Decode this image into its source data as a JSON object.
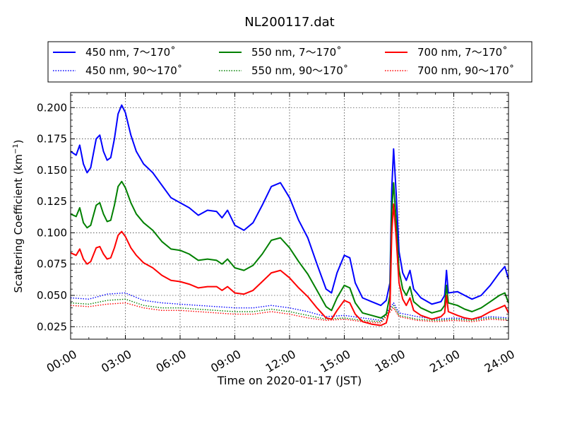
{
  "chart_data": {
    "type": "line",
    "title": "NL200117.dat",
    "xlabel": "Time on 2020-01-17 (JST)",
    "ylabel": "Scattering Coefficient (km",
    "ylabel_sup": "−1",
    "ylabel_close": ")",
    "xlim": [
      0,
      24
    ],
    "ylim": [
      0.015,
      0.212
    ],
    "grid": true,
    "legend_position": "top",
    "x_ticks": [
      0,
      3,
      6,
      9,
      12,
      15,
      18,
      21,
      24
    ],
    "x_tick_labels": [
      "00:00",
      "03:00",
      "06:00",
      "09:00",
      "12:00",
      "15:00",
      "18:00",
      "21:00",
      "24:00"
    ],
    "y_ticks": [
      0.025,
      0.05,
      0.075,
      0.1,
      0.125,
      0.15,
      0.175,
      0.2
    ],
    "y_tick_labels": [
      "0.025",
      "0.050",
      "0.075",
      "0.100",
      "0.125",
      "0.150",
      "0.175",
      "0.200"
    ],
    "series": [
      {
        "name": "450 nm, 7～170˚",
        "color": "#0000ff",
        "style": "solid",
        "points": [
          [
            0,
            0.165
          ],
          [
            0.3,
            0.162
          ],
          [
            0.5,
            0.17
          ],
          [
            0.7,
            0.155
          ],
          [
            0.9,
            0.148
          ],
          [
            1.1,
            0.152
          ],
          [
            1.4,
            0.175
          ],
          [
            1.6,
            0.178
          ],
          [
            1.8,
            0.165
          ],
          [
            2.0,
            0.158
          ],
          [
            2.2,
            0.16
          ],
          [
            2.4,
            0.175
          ],
          [
            2.6,
            0.195
          ],
          [
            2.8,
            0.202
          ],
          [
            3.0,
            0.196
          ],
          [
            3.3,
            0.178
          ],
          [
            3.6,
            0.165
          ],
          [
            4.0,
            0.155
          ],
          [
            4.5,
            0.148
          ],
          [
            5.0,
            0.138
          ],
          [
            5.5,
            0.128
          ],
          [
            6.0,
            0.124
          ],
          [
            6.5,
            0.12
          ],
          [
            7.0,
            0.114
          ],
          [
            7.5,
            0.118
          ],
          [
            8.0,
            0.117
          ],
          [
            8.3,
            0.112
          ],
          [
            8.6,
            0.118
          ],
          [
            9.0,
            0.106
          ],
          [
            9.5,
            0.102
          ],
          [
            10.0,
            0.108
          ],
          [
            10.5,
            0.122
          ],
          [
            11.0,
            0.137
          ],
          [
            11.5,
            0.14
          ],
          [
            12.0,
            0.128
          ],
          [
            12.5,
            0.11
          ],
          [
            13.0,
            0.096
          ],
          [
            13.5,
            0.075
          ],
          [
            14.0,
            0.055
          ],
          [
            14.3,
            0.052
          ],
          [
            14.6,
            0.068
          ],
          [
            15.0,
            0.082
          ],
          [
            15.3,
            0.08
          ],
          [
            15.6,
            0.06
          ],
          [
            16.0,
            0.048
          ],
          [
            16.5,
            0.045
          ],
          [
            17.0,
            0.042
          ],
          [
            17.3,
            0.046
          ],
          [
            17.5,
            0.06
          ],
          [
            17.6,
            0.135
          ],
          [
            17.7,
            0.167
          ],
          [
            17.85,
            0.13
          ],
          [
            18.0,
            0.085
          ],
          [
            18.2,
            0.068
          ],
          [
            18.4,
            0.062
          ],
          [
            18.6,
            0.07
          ],
          [
            18.8,
            0.055
          ],
          [
            19.2,
            0.048
          ],
          [
            19.8,
            0.043
          ],
          [
            20.3,
            0.045
          ],
          [
            20.5,
            0.05
          ],
          [
            20.6,
            0.07
          ],
          [
            20.7,
            0.052
          ],
          [
            21.2,
            0.053
          ],
          [
            21.6,
            0.05
          ],
          [
            22.0,
            0.047
          ],
          [
            22.5,
            0.05
          ],
          [
            23.0,
            0.058
          ],
          [
            23.5,
            0.068
          ],
          [
            23.8,
            0.073
          ],
          [
            24.0,
            0.063
          ]
        ]
      },
      {
        "name": "450 nm, 90～170˚",
        "color": "#0000ff",
        "style": "dotted",
        "points": [
          [
            0,
            0.048
          ],
          [
            1.0,
            0.047
          ],
          [
            2.0,
            0.051
          ],
          [
            3.0,
            0.052
          ],
          [
            4.0,
            0.046
          ],
          [
            5.0,
            0.044
          ],
          [
            6.0,
            0.043
          ],
          [
            7.0,
            0.042
          ],
          [
            8.0,
            0.041
          ],
          [
            9.0,
            0.04
          ],
          [
            10.0,
            0.04
          ],
          [
            11.0,
            0.042
          ],
          [
            12.0,
            0.04
          ],
          [
            13.0,
            0.037
          ],
          [
            14.0,
            0.033
          ],
          [
            15.0,
            0.034
          ],
          [
            16.0,
            0.032
          ],
          [
            17.0,
            0.03
          ],
          [
            17.7,
            0.044
          ],
          [
            18.0,
            0.036
          ],
          [
            19.0,
            0.033
          ],
          [
            20.0,
            0.031
          ],
          [
            21.0,
            0.032
          ],
          [
            22.0,
            0.031
          ],
          [
            23.0,
            0.033
          ],
          [
            24.0,
            0.032
          ]
        ]
      },
      {
        "name": "550 nm, 7～170˚",
        "color": "#008000",
        "style": "solid",
        "points": [
          [
            0,
            0.115
          ],
          [
            0.3,
            0.113
          ],
          [
            0.5,
            0.12
          ],
          [
            0.7,
            0.108
          ],
          [
            0.9,
            0.104
          ],
          [
            1.1,
            0.106
          ],
          [
            1.4,
            0.122
          ],
          [
            1.6,
            0.124
          ],
          [
            1.8,
            0.115
          ],
          [
            2.0,
            0.109
          ],
          [
            2.2,
            0.11
          ],
          [
            2.4,
            0.122
          ],
          [
            2.6,
            0.137
          ],
          [
            2.8,
            0.141
          ],
          [
            3.0,
            0.136
          ],
          [
            3.3,
            0.124
          ],
          [
            3.6,
            0.115
          ],
          [
            4.0,
            0.108
          ],
          [
            4.5,
            0.102
          ],
          [
            5.0,
            0.093
          ],
          [
            5.5,
            0.087
          ],
          [
            6.0,
            0.086
          ],
          [
            6.5,
            0.083
          ],
          [
            7.0,
            0.078
          ],
          [
            7.5,
            0.079
          ],
          [
            8.0,
            0.078
          ],
          [
            8.3,
            0.075
          ],
          [
            8.6,
            0.079
          ],
          [
            9.0,
            0.072
          ],
          [
            9.5,
            0.07
          ],
          [
            10.0,
            0.074
          ],
          [
            10.5,
            0.083
          ],
          [
            11.0,
            0.094
          ],
          [
            11.5,
            0.096
          ],
          [
            12.0,
            0.088
          ],
          [
            12.5,
            0.077
          ],
          [
            13.0,
            0.067
          ],
          [
            13.5,
            0.054
          ],
          [
            14.0,
            0.041
          ],
          [
            14.3,
            0.038
          ],
          [
            14.6,
            0.048
          ],
          [
            15.0,
            0.058
          ],
          [
            15.3,
            0.056
          ],
          [
            15.6,
            0.044
          ],
          [
            16.0,
            0.036
          ],
          [
            16.5,
            0.034
          ],
          [
            17.0,
            0.032
          ],
          [
            17.3,
            0.035
          ],
          [
            17.5,
            0.05
          ],
          [
            17.6,
            0.118
          ],
          [
            17.7,
            0.14
          ],
          [
            17.85,
            0.108
          ],
          [
            18.0,
            0.07
          ],
          [
            18.2,
            0.055
          ],
          [
            18.4,
            0.05
          ],
          [
            18.6,
            0.057
          ],
          [
            18.8,
            0.045
          ],
          [
            19.2,
            0.04
          ],
          [
            19.8,
            0.036
          ],
          [
            20.3,
            0.038
          ],
          [
            20.5,
            0.042
          ],
          [
            20.6,
            0.058
          ],
          [
            20.7,
            0.044
          ],
          [
            21.2,
            0.042
          ],
          [
            21.6,
            0.039
          ],
          [
            22.0,
            0.037
          ],
          [
            22.5,
            0.04
          ],
          [
            23.0,
            0.045
          ],
          [
            23.5,
            0.05
          ],
          [
            23.8,
            0.052
          ],
          [
            24.0,
            0.044
          ]
        ]
      },
      {
        "name": "550 nm, 90～170˚",
        "color": "#008000",
        "style": "dotted",
        "points": [
          [
            0,
            0.044
          ],
          [
            1.0,
            0.043
          ],
          [
            2.0,
            0.046
          ],
          [
            3.0,
            0.047
          ],
          [
            4.0,
            0.042
          ],
          [
            5.0,
            0.04
          ],
          [
            6.0,
            0.04
          ],
          [
            7.0,
            0.039
          ],
          [
            8.0,
            0.038
          ],
          [
            9.0,
            0.037
          ],
          [
            10.0,
            0.037
          ],
          [
            11.0,
            0.039
          ],
          [
            12.0,
            0.037
          ],
          [
            13.0,
            0.034
          ],
          [
            14.0,
            0.031
          ],
          [
            15.0,
            0.032
          ],
          [
            16.0,
            0.03
          ],
          [
            17.0,
            0.029
          ],
          [
            17.7,
            0.042
          ],
          [
            18.0,
            0.034
          ],
          [
            19.0,
            0.031
          ],
          [
            20.0,
            0.03
          ],
          [
            21.0,
            0.031
          ],
          [
            22.0,
            0.03
          ],
          [
            23.0,
            0.032
          ],
          [
            24.0,
            0.031
          ]
        ]
      },
      {
        "name": "700 nm, 7～170˚",
        "color": "#ff0000",
        "style": "solid",
        "points": [
          [
            0,
            0.084
          ],
          [
            0.3,
            0.082
          ],
          [
            0.5,
            0.087
          ],
          [
            0.7,
            0.079
          ],
          [
            0.9,
            0.075
          ],
          [
            1.1,
            0.077
          ],
          [
            1.4,
            0.088
          ],
          [
            1.6,
            0.089
          ],
          [
            1.8,
            0.083
          ],
          [
            2.0,
            0.079
          ],
          [
            2.2,
            0.08
          ],
          [
            2.4,
            0.088
          ],
          [
            2.6,
            0.098
          ],
          [
            2.8,
            0.101
          ],
          [
            3.0,
            0.097
          ],
          [
            3.3,
            0.088
          ],
          [
            3.6,
            0.082
          ],
          [
            4.0,
            0.076
          ],
          [
            4.5,
            0.072
          ],
          [
            5.0,
            0.066
          ],
          [
            5.5,
            0.062
          ],
          [
            6.0,
            0.061
          ],
          [
            6.5,
            0.059
          ],
          [
            7.0,
            0.056
          ],
          [
            7.5,
            0.057
          ],
          [
            8.0,
            0.057
          ],
          [
            8.3,
            0.054
          ],
          [
            8.6,
            0.057
          ],
          [
            9.0,
            0.052
          ],
          [
            9.5,
            0.051
          ],
          [
            10.0,
            0.054
          ],
          [
            10.5,
            0.061
          ],
          [
            11.0,
            0.068
          ],
          [
            11.5,
            0.07
          ],
          [
            12.0,
            0.064
          ],
          [
            12.5,
            0.056
          ],
          [
            13.0,
            0.049
          ],
          [
            13.5,
            0.04
          ],
          [
            14.0,
            0.032
          ],
          [
            14.3,
            0.031
          ],
          [
            14.6,
            0.038
          ],
          [
            15.0,
            0.046
          ],
          [
            15.3,
            0.044
          ],
          [
            15.6,
            0.035
          ],
          [
            16.0,
            0.029
          ],
          [
            16.5,
            0.027
          ],
          [
            17.0,
            0.026
          ],
          [
            17.3,
            0.028
          ],
          [
            17.5,
            0.04
          ],
          [
            17.6,
            0.1
          ],
          [
            17.7,
            0.123
          ],
          [
            17.85,
            0.095
          ],
          [
            18.0,
            0.06
          ],
          [
            18.2,
            0.047
          ],
          [
            18.4,
            0.042
          ],
          [
            18.6,
            0.048
          ],
          [
            18.8,
            0.038
          ],
          [
            19.2,
            0.034
          ],
          [
            19.8,
            0.031
          ],
          [
            20.3,
            0.033
          ],
          [
            20.5,
            0.036
          ],
          [
            20.6,
            0.05
          ],
          [
            20.7,
            0.037
          ],
          [
            21.2,
            0.034
          ],
          [
            21.6,
            0.032
          ],
          [
            22.0,
            0.031
          ],
          [
            22.5,
            0.033
          ],
          [
            23.0,
            0.037
          ],
          [
            23.5,
            0.04
          ],
          [
            23.8,
            0.042
          ],
          [
            24.0,
            0.036
          ]
        ]
      },
      {
        "name": "700 nm, 90～170˚",
        "color": "#ff0000",
        "style": "dotted",
        "points": [
          [
            0,
            0.042
          ],
          [
            1.0,
            0.041
          ],
          [
            2.0,
            0.043
          ],
          [
            3.0,
            0.044
          ],
          [
            4.0,
            0.04
          ],
          [
            5.0,
            0.038
          ],
          [
            6.0,
            0.038
          ],
          [
            7.0,
            0.037
          ],
          [
            8.0,
            0.036
          ],
          [
            9.0,
            0.035
          ],
          [
            10.0,
            0.035
          ],
          [
            11.0,
            0.037
          ],
          [
            12.0,
            0.035
          ],
          [
            13.0,
            0.032
          ],
          [
            14.0,
            0.03
          ],
          [
            15.0,
            0.031
          ],
          [
            16.0,
            0.029
          ],
          [
            17.0,
            0.028
          ],
          [
            17.7,
            0.04
          ],
          [
            18.0,
            0.033
          ],
          [
            19.0,
            0.03
          ],
          [
            20.0,
            0.029
          ],
          [
            21.0,
            0.03
          ],
          [
            22.0,
            0.029
          ],
          [
            23.0,
            0.031
          ],
          [
            24.0,
            0.03
          ]
        ]
      }
    ]
  }
}
